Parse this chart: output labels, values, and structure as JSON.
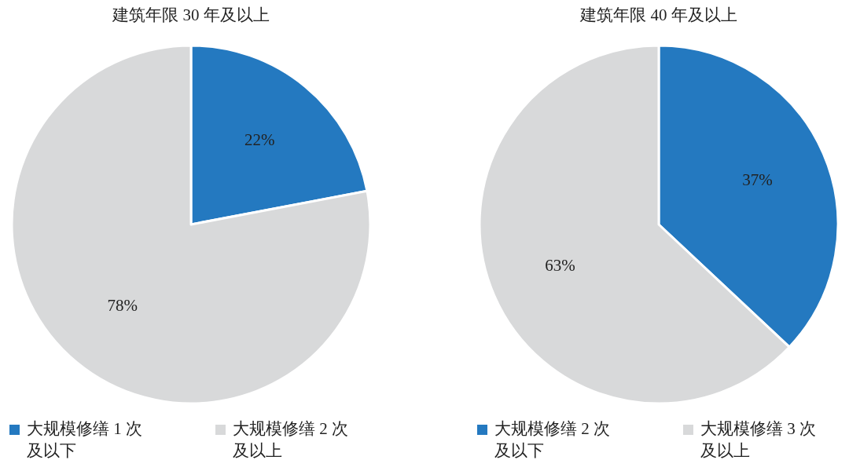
{
  "chart_data": [
    {
      "type": "pie",
      "title": "建筑年限 30 年及以上",
      "categories": [
        "大规模修缮 1 次及以下",
        "大规模修缮 2 次及以上"
      ],
      "values": [
        22,
        78
      ],
      "value_labels": [
        "22%",
        "78%"
      ],
      "colors": [
        "#2479c0",
        "#d8d9da"
      ],
      "legend": "bottom"
    },
    {
      "type": "pie",
      "title": "建筑年限 40 年及以上",
      "categories": [
        "大规模修缮 2 次及以下",
        "大规模修缮 3 次及以上"
      ],
      "values": [
        37,
        63
      ],
      "value_labels": [
        "37%",
        "63%"
      ],
      "colors": [
        "#2479c0",
        "#d8d9da"
      ],
      "legend": "bottom"
    }
  ]
}
